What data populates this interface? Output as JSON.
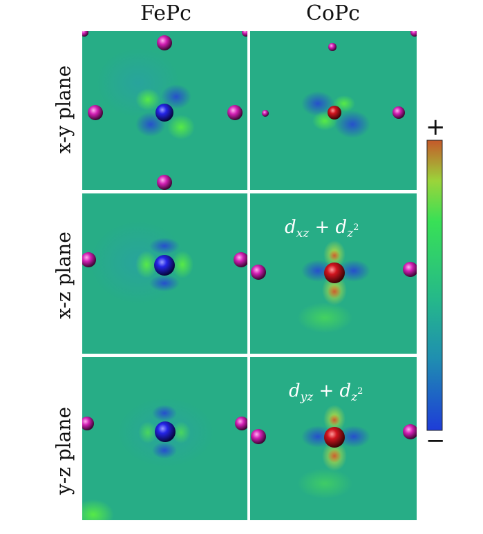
{
  "columns": [
    {
      "id": "fepc",
      "label": "FePc"
    },
    {
      "id": "copc",
      "label": "CoPc"
    }
  ],
  "rows": [
    {
      "id": "xy",
      "label": "x-y plane"
    },
    {
      "id": "xz",
      "label": "x-z plane"
    },
    {
      "id": "yz",
      "label": "y-z plane"
    }
  ],
  "colorbar": {
    "max_label": "+",
    "min_label": "−",
    "colors": [
      "#1e3cd8",
      "#1f8fb0",
      "#25b88a",
      "#38e056",
      "#9bd43a",
      "#c5592a"
    ]
  },
  "annotations": {
    "xz_copc": {
      "d": "d",
      "sub1": "xz",
      "plus": " + ",
      "d2": "d",
      "sub2": "z",
      "sup2": "2"
    },
    "yz_copc": {
      "d": "d",
      "sub1": "yz",
      "plus": " + ",
      "d2": "d",
      "sub2": "z",
      "sup2": "2"
    }
  },
  "colors": {
    "background_field": "#25ad86",
    "metal_fe": "#1a1adc",
    "metal_co": "#c8121c",
    "ligand_atom": "#d21fb4",
    "divider": "#ffffff"
  }
}
